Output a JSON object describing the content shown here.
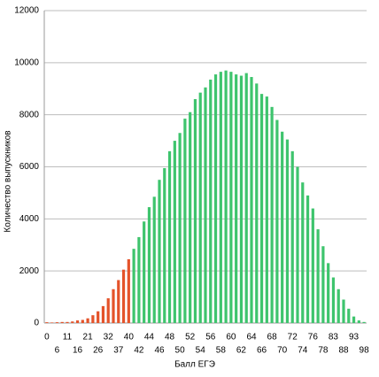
{
  "chart_data": {
    "type": "bar",
    "x_label": "Балл ЕГЭ",
    "y_label": "Количество выпускников",
    "categories": [
      "0",
      null,
      "6",
      null,
      "11",
      null,
      "16",
      null,
      "21",
      null,
      "26",
      null,
      "32",
      null,
      "37",
      null,
      "40",
      null,
      "42",
      null,
      "44",
      null,
      "46",
      null,
      "48",
      null,
      "50",
      null,
      "52",
      null,
      "54",
      null,
      "56",
      null,
      "58",
      null,
      "60",
      null,
      "62",
      null,
      "64",
      null,
      "66",
      null,
      "68",
      null,
      "70",
      null,
      "72",
      null,
      "74",
      null,
      "76",
      null,
      "78",
      null,
      "83",
      null,
      "88",
      null,
      "93",
      null,
      "98"
    ],
    "values": [
      30,
      20,
      30,
      40,
      40,
      60,
      100,
      120,
      180,
      300,
      450,
      650,
      950,
      1300,
      1650,
      2050,
      2450,
      2850,
      3300,
      3900,
      4450,
      4850,
      5500,
      5950,
      6600,
      7000,
      7300,
      7850,
      8100,
      8600,
      8850,
      9050,
      9350,
      9550,
      9650,
      9700,
      9650,
      9550,
      9500,
      9600,
      9450,
      9200,
      8800,
      8700,
      8300,
      7800,
      7350,
      7050,
      6600,
      6000,
      5400,
      4900,
      4400,
      3600,
      2950,
      2300,
      1750,
      1300,
      900,
      550,
      250,
      100,
      40
    ],
    "colors": [
      "#e4532a",
      "#e4532a",
      "#e4532a",
      "#e4532a",
      "#e4532a",
      "#e4532a",
      "#e4532a",
      "#e4532a",
      "#e4532a",
      "#e4532a",
      "#e4532a",
      "#e4532a",
      "#e4532a",
      "#e4532a",
      "#e4532a",
      "#e4532a",
      "#e4532a",
      "#3ec46d",
      "#3ec46d",
      "#3ec46d",
      "#3ec46d",
      "#3ec46d",
      "#3ec46d",
      "#3ec46d",
      "#3ec46d",
      "#3ec46d",
      "#3ec46d",
      "#3ec46d",
      "#3ec46d",
      "#3ec46d",
      "#3ec46d",
      "#3ec46d",
      "#3ec46d",
      "#3ec46d",
      "#3ec46d",
      "#3ec46d",
      "#3ec46d",
      "#3ec46d",
      "#3ec46d",
      "#3ec46d",
      "#3ec46d",
      "#3ec46d",
      "#3ec46d",
      "#3ec46d",
      "#3ec46d",
      "#3ec46d",
      "#3ec46d",
      "#3ec46d",
      "#3ec46d",
      "#3ec46d",
      "#3ec46d",
      "#3ec46d",
      "#3ec46d",
      "#3ec46d",
      "#3ec46d",
      "#3ec46d",
      "#3ec46d",
      "#3ec46d",
      "#3ec46d",
      "#3ec46d",
      "#3ec46d",
      "#3ec46d",
      "#3ec46d"
    ],
    "ylim": [
      0,
      12000
    ],
    "yticks": [
      0,
      2000,
      4000,
      6000,
      8000,
      10000,
      12000
    ],
    "grid": true
  }
}
